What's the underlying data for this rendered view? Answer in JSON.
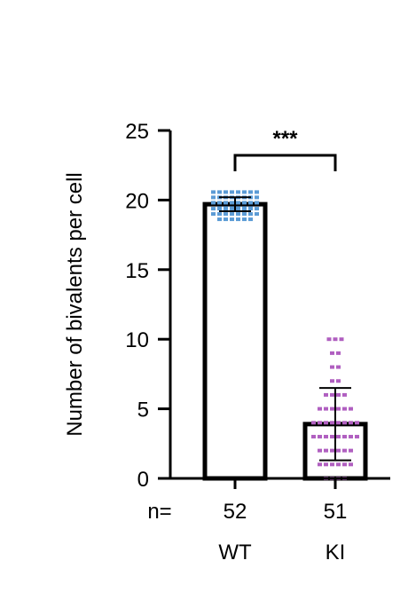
{
  "chart_data": {
    "type": "bar",
    "title": "",
    "xlabel": "",
    "ylabel": "Number of bivalents per cell",
    "ylim": [
      0,
      25
    ],
    "yticks": [
      0,
      5,
      10,
      15,
      20,
      25
    ],
    "grid": false,
    "n_prefix": "n=",
    "significance": "***",
    "categories": [
      "WT",
      "KI"
    ],
    "n_values": [
      "52",
      "51"
    ],
    "values": [
      19.7,
      3.9
    ],
    "error_sd": [
      0.5,
      2.6
    ],
    "bar_fill": "#ffffff",
    "bar_edge": "#000000",
    "point_colors": [
      "#5b9bd5",
      "#b05fc0"
    ],
    "points": [
      [
        {
          "y": 20,
          "count": 30
        },
        {
          "y": 19,
          "count": 22
        }
      ],
      [
        {
          "y": 0,
          "count": 4
        },
        {
          "y": 1,
          "count": 6
        },
        {
          "y": 2,
          "count": 6
        },
        {
          "y": 3,
          "count": 8
        },
        {
          "y": 4,
          "count": 8
        },
        {
          "y": 5,
          "count": 6
        },
        {
          "y": 6,
          "count": 4
        },
        {
          "y": 7,
          "count": 2
        },
        {
          "y": 8,
          "count": 2
        },
        {
          "y": 9,
          "count": 2
        },
        {
          "y": 10,
          "count": 3
        }
      ]
    ]
  }
}
